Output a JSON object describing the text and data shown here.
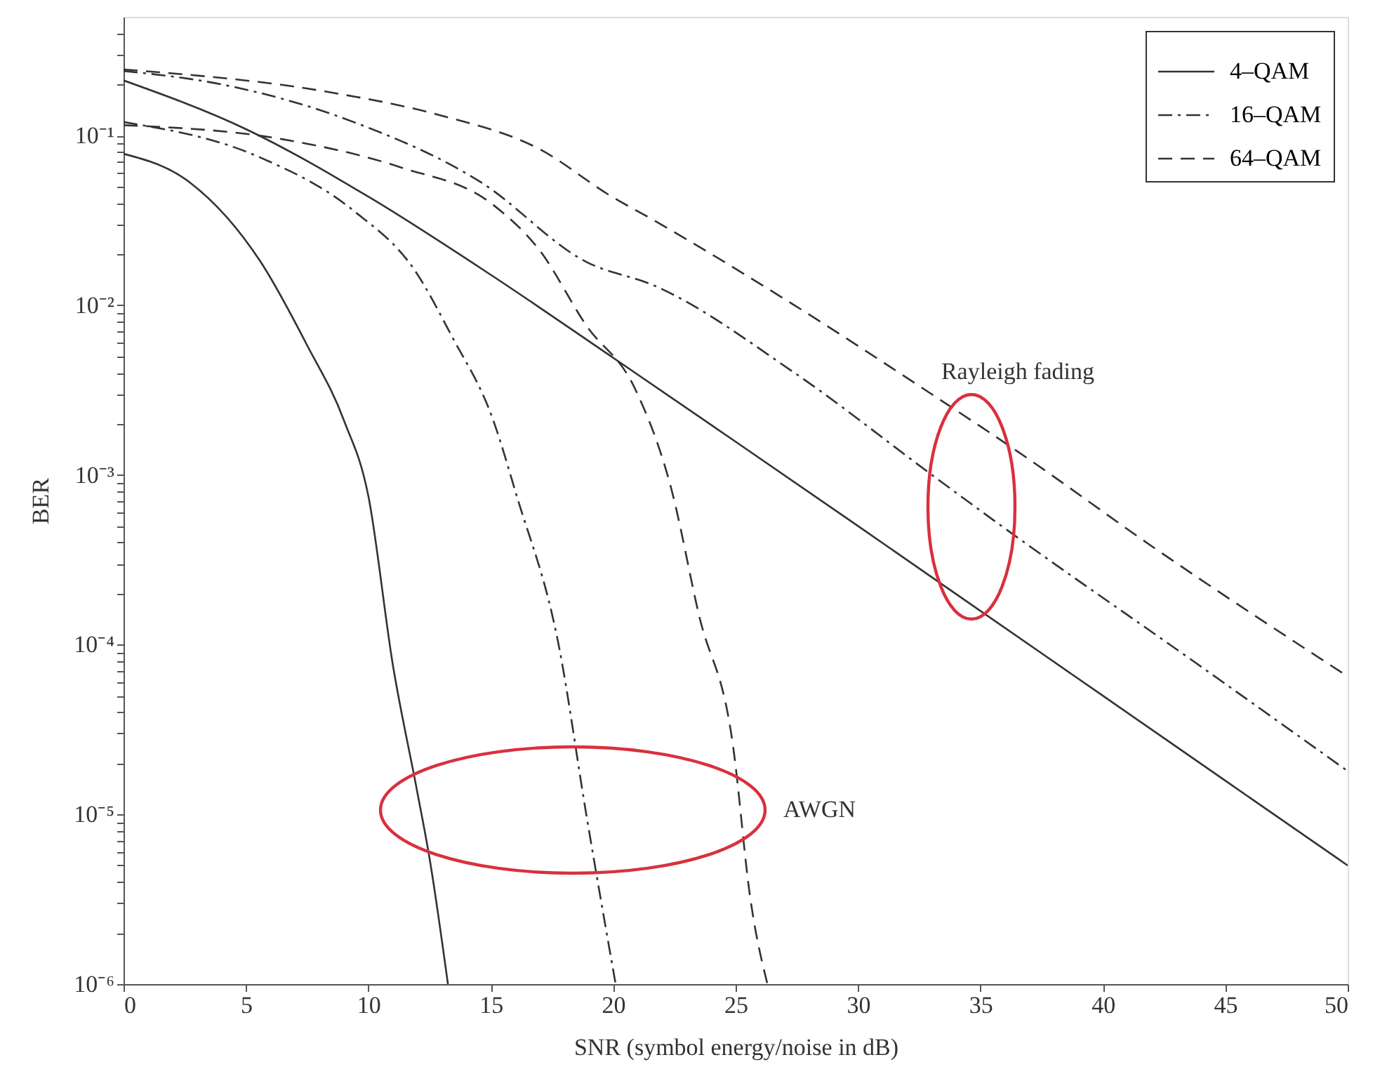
{
  "chart_data": {
    "type": "line",
    "xlabel": "SNR (symbol energy/noise in dB)",
    "ylabel": "BER",
    "log": "y",
    "xlim": [
      0,
      50
    ],
    "xticks": [
      0,
      5,
      10,
      15,
      20,
      25,
      30,
      35,
      40,
      45,
      50
    ],
    "ylim": [
      1e-06,
      0.5
    ],
    "yticks": [
      {
        "value": 1e-06,
        "label": "10⁻⁶"
      },
      {
        "value": 2e-06,
        "label": null
      },
      {
        "value": 3e-06,
        "label": null
      },
      {
        "value": 4e-06,
        "label": null
      },
      {
        "value": 5e-06,
        "label": null
      },
      {
        "value": 6e-06,
        "label": null
      },
      {
        "value": 7e-06,
        "label": null
      },
      {
        "value": 8e-06,
        "label": null
      },
      {
        "value": 9e-06,
        "label": null
      },
      {
        "value": 1e-05,
        "label": "10⁻⁵"
      },
      {
        "value": 2e-05,
        "label": null
      },
      {
        "value": 3e-05,
        "label": null
      },
      {
        "value": 4e-05,
        "label": null
      },
      {
        "value": 5e-05,
        "label": null
      },
      {
        "value": 6e-05,
        "label": null
      },
      {
        "value": 7e-05,
        "label": null
      },
      {
        "value": 8e-05,
        "label": null
      },
      {
        "value": 9e-05,
        "label": null
      },
      {
        "value": 0.0001,
        "label": "10⁻⁴"
      },
      {
        "value": 0.0002,
        "label": null
      },
      {
        "value": 0.0003,
        "label": null
      },
      {
        "value": 0.0004,
        "label": null
      },
      {
        "value": 0.0005,
        "label": null
      },
      {
        "value": 0.0006,
        "label": null
      },
      {
        "value": 0.0007,
        "label": null
      },
      {
        "value": 0.0008,
        "label": null
      },
      {
        "value": 0.0009,
        "label": null
      },
      {
        "value": 0.001,
        "label": "10⁻³"
      },
      {
        "value": 0.002,
        "label": null
      },
      {
        "value": 0.003,
        "label": null
      },
      {
        "value": 0.004,
        "label": null
      },
      {
        "value": 0.005,
        "label": null
      },
      {
        "value": 0.006,
        "label": null
      },
      {
        "value": 0.007,
        "label": null
      },
      {
        "value": 0.008,
        "label": null
      },
      {
        "value": 0.009,
        "label": null
      },
      {
        "value": 0.01,
        "label": "10⁻²"
      },
      {
        "value": 0.02,
        "label": null
      },
      {
        "value": 0.03,
        "label": null
      },
      {
        "value": 0.04,
        "label": null
      },
      {
        "value": 0.05,
        "label": null
      },
      {
        "value": 0.06,
        "label": null
      },
      {
        "value": 0.07,
        "label": null
      },
      {
        "value": 0.08,
        "label": null
      },
      {
        "value": 0.09,
        "label": null
      },
      {
        "value": 0.1,
        "label": "10⁻¹"
      },
      {
        "value": 0.2,
        "label": null
      },
      {
        "value": 0.3,
        "label": null
      },
      {
        "value": 0.4,
        "label": null
      }
    ],
    "grid": false,
    "legend": "top right",
    "marker": "none",
    "series": [
      {
        "name": "4–QAM",
        "color": "#333333",
        "line_style": "solid",
        "x": [
          0,
          5,
          10,
          15,
          20,
          25,
          30,
          35,
          40,
          45,
          50
        ],
        "values": [
          0.211,
          0.109,
          0.0436,
          0.0151,
          0.0049,
          0.00157,
          0.0005,
          0.000158,
          5e-05,
          1.58e-05,
          5e-06
        ]
      },
      {
        "color": "#333333",
        "line_style": "solid",
        "x": [
          0,
          2.7,
          5.6,
          7.5,
          9,
          10,
          11,
          12,
          12.5,
          13.25
        ],
        "values": [
          0.078,
          0.053,
          0.018,
          0.0058,
          0.0021,
          0.00075,
          7.6e-05,
          1.35e-05,
          5.5e-06,
          1e-06
        ]
      },
      {
        "name": "16–QAM",
        "color": "#333333",
        "line_style": "dashdot",
        "x": [
          0,
          4,
          9.4,
          14.6,
          18.9,
          21.7,
          27.4,
          33.1,
          35.7,
          43.8,
          50
        ],
        "values": [
          0.24,
          0.2,
          0.12,
          0.053,
          0.018,
          0.013,
          0.004,
          0.00098,
          0.00052,
          7.8e-05,
          1.8e-05
        ]
      },
      {
        "color": "#333333",
        "line_style": "dashdot",
        "x": [
          0,
          5.6,
          9.4,
          11.9,
          13.4,
          15.1,
          16.05,
          17.8,
          18.9,
          20.1
        ],
        "values": [
          0.12,
          0.074,
          0.036,
          0.016,
          0.0066,
          0.0021,
          0.00076,
          9.5e-05,
          1e-05,
          1e-06
        ]
      },
      {
        "name": "64–QAM",
        "color": "#333333",
        "line_style": "dashed",
        "x": [
          0,
          8.6,
          12.8,
          17,
          19.9,
          21.6,
          27.4,
          32.7,
          36.9,
          42,
          50
        ],
        "values": [
          0.245,
          0.178,
          0.133,
          0.083,
          0.044,
          0.032,
          0.01,
          0.0032,
          0.00126,
          0.00038,
          6.5e-05
        ]
      },
      {
        "color": "#333333",
        "line_style": "dashed",
        "x": [
          0,
          6.5,
          11.3,
          15.1,
          17,
          18.9,
          20.9,
          22.4,
          23.5,
          24.9,
          25.6,
          26.3
        ],
        "values": [
          0.115,
          0.095,
          0.065,
          0.039,
          0.021,
          0.0076,
          0.0032,
          0.0008,
          0.00015,
          2.5e-05,
          3.2e-06,
          1e-06
        ]
      }
    ],
    "annotations": [
      "Rayleigh fading",
      "AWGN"
    ]
  }
}
